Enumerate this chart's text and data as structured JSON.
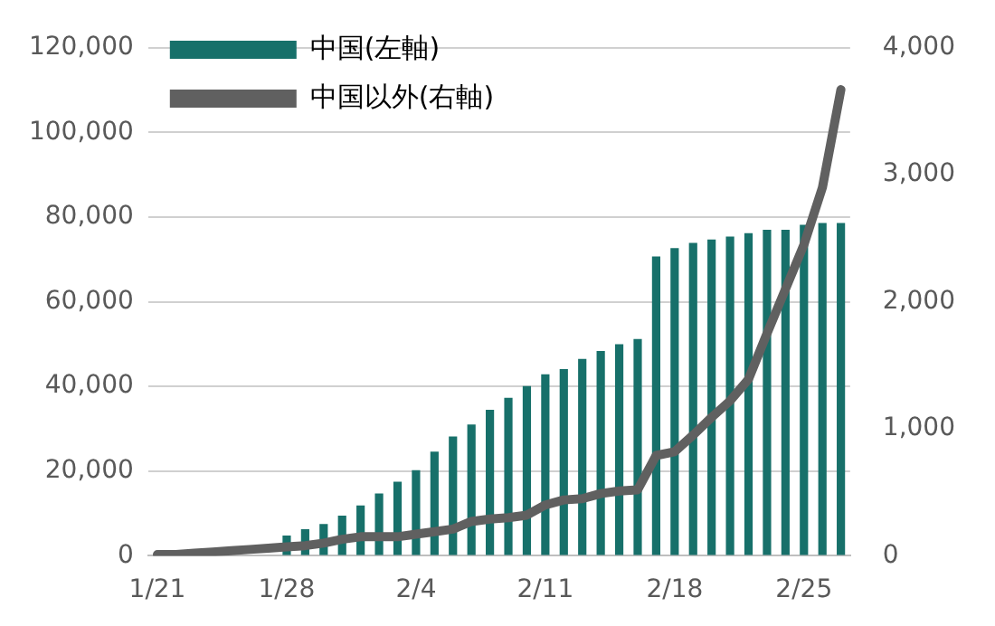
{
  "chart_data": {
    "type": "bar",
    "categories": [
      "1/21",
      null,
      null,
      null,
      null,
      null,
      null,
      "1/28",
      null,
      null,
      null,
      null,
      null,
      null,
      "2/4",
      null,
      null,
      null,
      null,
      null,
      null,
      "2/11",
      null,
      null,
      null,
      null,
      null,
      null,
      "2/18",
      null,
      null,
      null,
      null,
      null,
      null,
      "2/25",
      null,
      null
    ],
    "series": [
      {
        "name": "中国(左軸)",
        "color": "#17706a",
        "values": [
          null,
          null,
          null,
          null,
          null,
          null,
          null,
          4800,
          6300,
          7500,
          9500,
          11900,
          14700,
          17500,
          20200,
          24600,
          28200,
          31000,
          34500,
          37300,
          40100,
          42900,
          44100,
          46500,
          48400,
          50000,
          51200,
          70700,
          72700,
          73900,
          74700,
          75400,
          76200,
          77000,
          77000,
          78200,
          78600,
          78600
        ]
      },
      {
        "name": "中国以外(右軸)",
        "type": "line",
        "axis": "y2",
        "color": "#606060",
        "values": [
          10,
          10,
          20,
          30,
          40,
          50,
          60,
          70,
          80,
          100,
          130,
          150,
          150,
          150,
          170,
          190,
          210,
          270,
          290,
          300,
          320,
          400,
          440,
          450,
          490,
          510,
          520,
          790,
          820,
          950,
          1090,
          1220,
          1390,
          1750,
          2100,
          2450,
          2900,
          3670
        ]
      }
    ],
    "ylim": [
      0,
      120000
    ],
    "yticks": [
      {
        "value": 0,
        "label": "0"
      },
      {
        "value": 20000,
        "label": "20,000"
      },
      {
        "value": 40000,
        "label": "40,000"
      },
      {
        "value": 60000,
        "label": "60,000"
      },
      {
        "value": 80000,
        "label": "80,000"
      },
      {
        "value": 100000,
        "label": "100,000"
      },
      {
        "value": 120000,
        "label": "120,000"
      }
    ],
    "y2lim": [
      0,
      4000
    ],
    "y2ticks": [
      {
        "value": 0,
        "label": "0"
      },
      {
        "value": 1000,
        "label": "1,000"
      },
      {
        "value": 2000,
        "label": "2,000"
      },
      {
        "value": 3000,
        "label": "3,000"
      },
      {
        "value": 4000,
        "label": "4,000"
      }
    ],
    "grid": "y",
    "legend": "top left",
    "marker": "none",
    "line_style": "solid"
  }
}
